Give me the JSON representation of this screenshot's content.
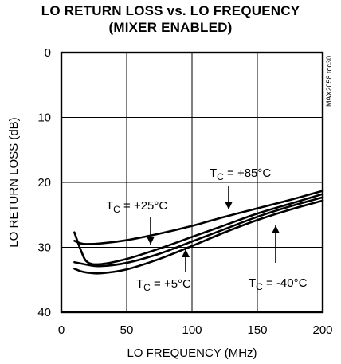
{
  "chart_data": {
    "type": "line",
    "title": "LO RETURN LOSS vs. LO FREQUENCY",
    "subtitle": "(MIXER ENABLED)",
    "xlabel": "LO FREQUENCY (MHz)",
    "ylabel": "LO RETURN LOSS (dB)",
    "watermark": "MAX2058 toc30",
    "xlim": [
      0,
      200
    ],
    "ylim": [
      40,
      0
    ],
    "y_inverted": true,
    "x_ticks": [
      "0",
      "50",
      "100",
      "150",
      "200"
    ],
    "y_ticks": [
      "0",
      "10",
      "20",
      "30",
      "40"
    ],
    "grid": true,
    "series": [
      {
        "name": "TC = +85°C",
        "label": "+85°C",
        "x": [
          10,
          15,
          20,
          30,
          50,
          75,
          100,
          125,
          150,
          175,
          200
        ],
        "y": [
          29.0,
          29.4,
          29.5,
          29.4,
          28.9,
          27.9,
          26.7,
          25.3,
          24.0,
          22.7,
          21.3
        ]
      },
      {
        "name": "TC = +25°C",
        "label": "+25°C",
        "x": [
          10,
          15,
          20,
          30,
          50,
          75,
          100,
          125,
          150,
          175,
          200
        ],
        "y": [
          27.7,
          30.5,
          32.3,
          32.6,
          31.8,
          30.2,
          28.4,
          26.6,
          24.8,
          23.3,
          21.8
        ]
      },
      {
        "name": "TC = +5°C",
        "label": "+5°C",
        "x": [
          10,
          15,
          20,
          30,
          50,
          75,
          100,
          125,
          150,
          175,
          200
        ],
        "y": [
          32.3,
          32.5,
          32.7,
          32.9,
          32.4,
          31.0,
          29.1,
          27.2,
          25.3,
          23.7,
          22.3
        ]
      },
      {
        "name": "TC = -40°C",
        "label": "-40°C",
        "x": [
          10,
          15,
          20,
          30,
          50,
          75,
          100,
          125,
          150,
          175,
          200
        ],
        "y": [
          33.3,
          33.7,
          33.9,
          34.0,
          33.4,
          31.8,
          29.8,
          27.7,
          25.8,
          24.2,
          22.8
        ]
      }
    ],
    "annotations": [
      {
        "text_prefix": "T",
        "text_sub": "C",
        "text_value": " = +85°C",
        "series": 0
      },
      {
        "text_prefix": "T",
        "text_sub": "C",
        "text_value": " = +25°C",
        "series": 1
      },
      {
        "text_prefix": "T",
        "text_sub": "C",
        "text_value": " = +5°C",
        "series": 2
      },
      {
        "text_prefix": "T",
        "text_sub": "C",
        "text_value": " = -40°C",
        "series": 3
      }
    ]
  }
}
